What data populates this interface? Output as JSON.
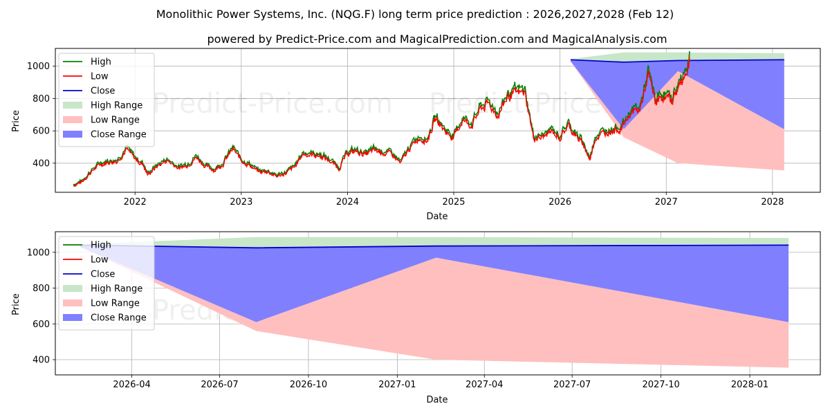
{
  "chart_data": {
    "type": "line",
    "title": "Monolithic Power Systems, Inc. (NQG.F) long term price prediction : 2026,2027,2028 (Feb 12)",
    "subtitle": "powered by Predict-Price.com and MagicalPrediction.com and MagicalAnalysis.com",
    "watermark": "Predict-Price.com",
    "colors": {
      "high": "#008000",
      "low": "#ff0000",
      "close": "#0000cd",
      "high_range": "#c8e6c8",
      "low_range": "#ffbfbf",
      "close_range": "#8080ff"
    },
    "legend": [
      "High",
      "Low",
      "Close",
      "High Range",
      "Low Range",
      "Close Range"
    ],
    "top_panel": {
      "xlabel": "Date",
      "ylabel": "Price",
      "xlim": [
        2021.25,
        2028.45
      ],
      "ylim": [
        220,
        1110
      ],
      "xticks": [
        {
          "v": 2022,
          "label": "2022"
        },
        {
          "v": 2023,
          "label": "2023"
        },
        {
          "v": 2024,
          "label": "2024"
        },
        {
          "v": 2025,
          "label": "2025"
        },
        {
          "v": 2026,
          "label": "2026"
        },
        {
          "v": 2027,
          "label": "2027"
        },
        {
          "v": 2028,
          "label": "2028"
        }
      ],
      "yticks": [
        400,
        600,
        800,
        1000
      ],
      "history_anchors": [
        [
          2021.42,
          265
        ],
        [
          2021.5,
          285
        ],
        [
          2021.58,
          345
        ],
        [
          2021.67,
          395
        ],
        [
          2021.75,
          410
        ],
        [
          2021.83,
          415
        ],
        [
          2021.92,
          490
        ],
        [
          2022.0,
          430
        ],
        [
          2022.08,
          390
        ],
        [
          2022.12,
          330
        ],
        [
          2022.2,
          380
        ],
        [
          2022.3,
          420
        ],
        [
          2022.42,
          370
        ],
        [
          2022.5,
          395
        ],
        [
          2022.58,
          440
        ],
        [
          2022.67,
          380
        ],
        [
          2022.75,
          360
        ],
        [
          2022.83,
          400
        ],
        [
          2022.92,
          490
        ],
        [
          2023.0,
          420
        ],
        [
          2023.08,
          390
        ],
        [
          2023.17,
          345
        ],
        [
          2023.25,
          350
        ],
        [
          2023.33,
          320
        ],
        [
          2023.42,
          340
        ],
        [
          2023.5,
          375
        ],
        [
          2023.58,
          460
        ],
        [
          2023.67,
          455
        ],
        [
          2023.75,
          445
        ],
        [
          2023.83,
          420
        ],
        [
          2023.92,
          370
        ],
        [
          2024.0,
          465
        ],
        [
          2024.08,
          475
        ],
        [
          2024.17,
          455
        ],
        [
          2024.25,
          480
        ],
        [
          2024.33,
          470
        ],
        [
          2024.42,
          455
        ],
        [
          2024.5,
          400
        ],
        [
          2024.58,
          490
        ],
        [
          2024.67,
          560
        ],
        [
          2024.75,
          545
        ],
        [
          2024.83,
          680
        ],
        [
          2024.92,
          600
        ],
        [
          2025.0,
          560
        ],
        [
          2025.08,
          670
        ],
        [
          2025.17,
          640
        ],
        [
          2025.25,
          740
        ],
        [
          2025.33,
          770
        ],
        [
          2025.42,
          700
        ],
        [
          2025.5,
          810
        ],
        [
          2025.58,
          835
        ],
        [
          2025.67,
          840
        ],
        [
          2025.75,
          560
        ],
        [
          2025.83,
          560
        ],
        [
          2025.92,
          600
        ],
        [
          2026.0,
          560
        ],
        [
          2026.08,
          640
        ],
        [
          2026.15,
          570
        ],
        [
          2026.22,
          520
        ],
        [
          2026.28,
          420
        ],
        [
          2026.33,
          560
        ],
        [
          2026.42,
          590
        ],
        [
          2026.5,
          610
        ],
        [
          2026.58,
          620
        ],
        [
          2026.67,
          720
        ],
        [
          2026.75,
          730
        ],
        [
          2026.83,
          950
        ],
        [
          2026.9,
          780
        ],
        [
          2026.97,
          820
        ],
        [
          2027.05,
          790
        ],
        [
          2027.12,
          880
        ],
        [
          2027.2,
          990
        ],
        [
          2027.22,
          1060
        ]
      ]
    },
    "bottom_panel": {
      "xlabel": "Date",
      "ylabel": "Price",
      "xlim": [
        2026.03,
        2028.2
      ],
      "ylim": [
        315,
        1115
      ],
      "xticks": [
        {
          "v": 2026.247,
          "label": "2026-04"
        },
        {
          "v": 2026.496,
          "label": "2026-07"
        },
        {
          "v": 2026.748,
          "label": "2026-10"
        },
        {
          "v": 2027.0,
          "label": "2027-01"
        },
        {
          "v": 2027.247,
          "label": "2027-04"
        },
        {
          "v": 2027.496,
          "label": "2027-07"
        },
        {
          "v": 2027.748,
          "label": "2027-10"
        },
        {
          "v": 2028.0,
          "label": "2028-01"
        }
      ],
      "yticks": [
        400,
        600,
        800,
        1000
      ]
    },
    "forecast": {
      "x": [
        2026.1,
        2026.6,
        2027.11,
        2028.11
      ],
      "high_range": {
        "upper": [
          1045,
          1085,
          1085,
          1080
        ],
        "lower": [
          1045,
          1025,
          1035,
          1040
        ]
      },
      "low_range": {
        "upper": [
          1030,
          610,
          970,
          610
        ],
        "lower": [
          1030,
          560,
          400,
          355
        ]
      },
      "close_range": {
        "upper": [
          1040,
          1025,
          1035,
          1040
        ],
        "lower": [
          1030,
          610,
          970,
          610
        ]
      },
      "close_line": [
        1040,
        1025,
        1035,
        1040
      ]
    }
  }
}
